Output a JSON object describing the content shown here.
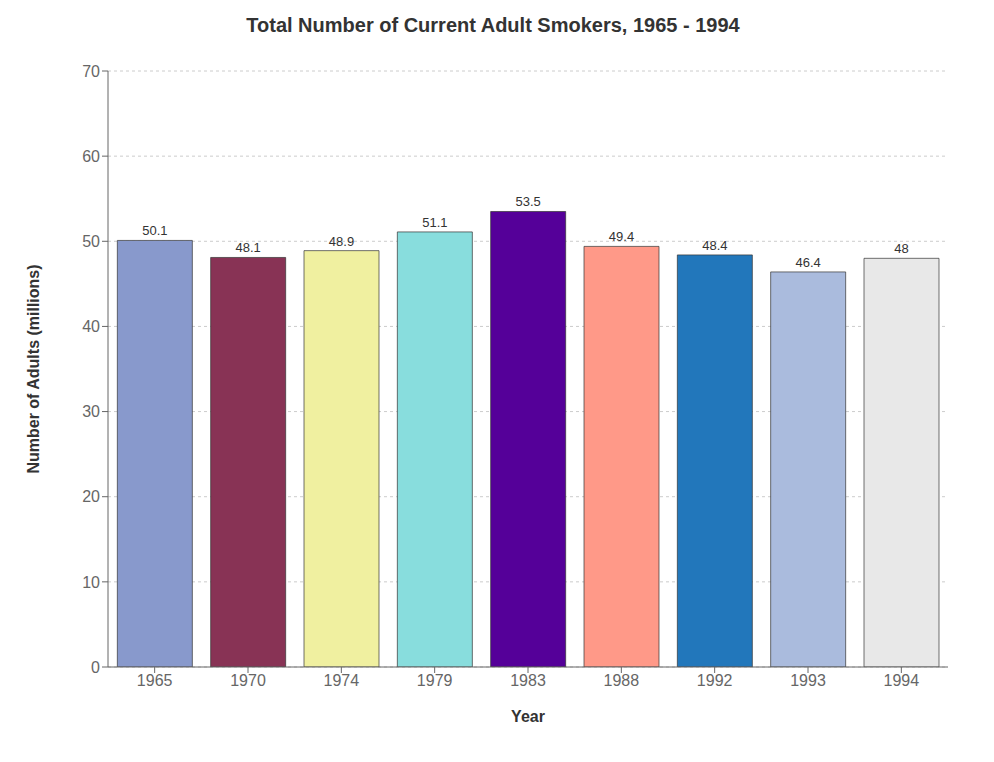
{
  "chart_data": {
    "type": "bar",
    "title": "Total Number of Current Adult Smokers, 1965 - 1994",
    "xlabel": "Year",
    "ylabel": "Number of Adults (millions)",
    "categories": [
      "1965",
      "1970",
      "1974",
      "1979",
      "1983",
      "1988",
      "1992",
      "1993",
      "1994"
    ],
    "values": [
      50.1,
      48.1,
      48.9,
      51.1,
      53.5,
      49.4,
      48.4,
      46.4,
      48.0
    ],
    "colors": [
      "#8899CC",
      "#883355",
      "#F0F0A0",
      "#88DDDD",
      "#550099",
      "#FF9988",
      "#2277BB",
      "#AABBDD",
      "#E8E8E8"
    ],
    "ylim": [
      0,
      70
    ],
    "yticks": [
      0,
      10,
      20,
      30,
      40,
      50,
      60,
      70
    ],
    "grid": true,
    "data_labels": true
  }
}
